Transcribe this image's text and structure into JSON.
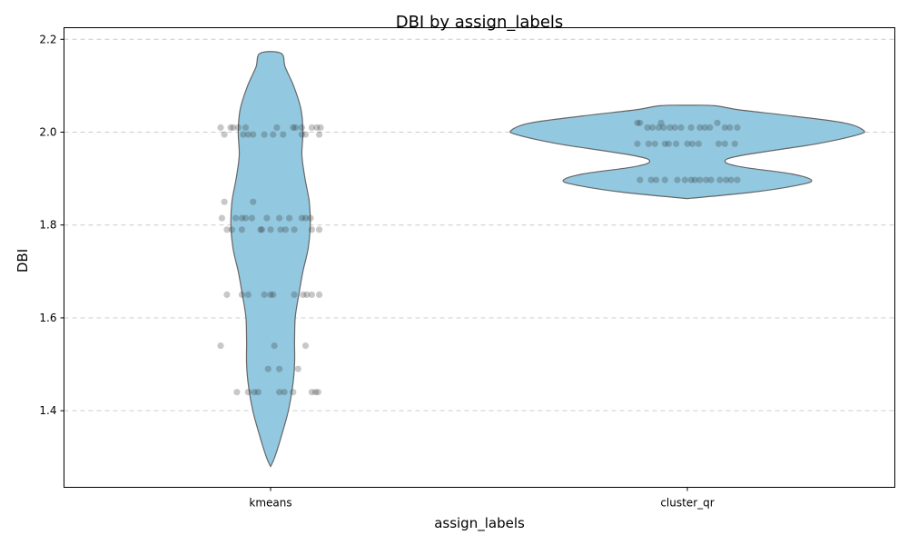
{
  "chart_data": {
    "type": "violin",
    "title": "DBI by assign_labels",
    "xlabel": "assign_labels",
    "ylabel": "DBI",
    "categories": [
      "kmeans",
      "cluster_qr"
    ],
    "ylim": [
      1.235,
      2.225
    ],
    "yticks": [
      1.4,
      1.6,
      1.8,
      2.0,
      2.2
    ],
    "ytick_labels": [
      "1.4",
      "1.6",
      "1.8",
      "2.0",
      "2.2"
    ],
    "grid": "y-dashed",
    "colors": {
      "violin_fill": "#92c9e0",
      "violin_edge": "#666666",
      "points": "#333333"
    },
    "violins": [
      {
        "category": "kmeans",
        "profile": [
          [
            1.28,
            0.0
          ],
          [
            1.3,
            0.02
          ],
          [
            1.35,
            0.055
          ],
          [
            1.4,
            0.085
          ],
          [
            1.45,
            0.105
          ],
          [
            1.5,
            0.115
          ],
          [
            1.55,
            0.115
          ],
          [
            1.6,
            0.118
          ],
          [
            1.65,
            0.135
          ],
          [
            1.7,
            0.155
          ],
          [
            1.75,
            0.18
          ],
          [
            1.8,
            0.19
          ],
          [
            1.85,
            0.185
          ],
          [
            1.9,
            0.165
          ],
          [
            1.95,
            0.15
          ],
          [
            2.0,
            0.155
          ],
          [
            2.05,
            0.145
          ],
          [
            2.1,
            0.11
          ],
          [
            2.14,
            0.07
          ],
          [
            2.17,
            0.05
          ]
        ]
      },
      {
        "category": "cluster_qr",
        "profile": [
          [
            1.857,
            0.0
          ],
          [
            1.87,
            0.3
          ],
          [
            1.885,
            0.52
          ],
          [
            1.896,
            0.595
          ],
          [
            1.91,
            0.5
          ],
          [
            1.925,
            0.26
          ],
          [
            1.937,
            0.18
          ],
          [
            1.95,
            0.26
          ],
          [
            1.975,
            0.62
          ],
          [
            1.995,
            0.82
          ],
          [
            2.005,
            0.84
          ],
          [
            2.02,
            0.75
          ],
          [
            2.035,
            0.5
          ],
          [
            2.048,
            0.25
          ],
          [
            2.057,
            0.13
          ],
          [
            2.058,
            0.0
          ]
        ]
      }
    ],
    "points": [
      {
        "category": "kmeans",
        "values": [
          2.01,
          2.01,
          2.01,
          2.01,
          2.01,
          2.01,
          2.01,
          2.01,
          2.01,
          2.01,
          2.01,
          2.01,
          1.995,
          1.995,
          1.995,
          1.995,
          1.995,
          1.995,
          1.995,
          1.995,
          1.995,
          1.995,
          1.85,
          1.85,
          1.815,
          1.815,
          1.815,
          1.815,
          1.815,
          1.815,
          1.815,
          1.815,
          1.815,
          1.815,
          1.815,
          1.79,
          1.79,
          1.79,
          1.79,
          1.79,
          1.79,
          1.79,
          1.79,
          1.79,
          1.79,
          1.79,
          1.65,
          1.65,
          1.65,
          1.65,
          1.65,
          1.65,
          1.65,
          1.65,
          1.65,
          1.65,
          1.65,
          1.54,
          1.54,
          1.54,
          1.49,
          1.49,
          1.49,
          1.44,
          1.44,
          1.44,
          1.44,
          1.44,
          1.44,
          1.44,
          1.44,
          1.44,
          1.44
        ],
        "jitter": [
          -0.4,
          -0.32,
          -0.3,
          -0.26,
          -0.2,
          0.05,
          0.18,
          0.2,
          0.25,
          0.33,
          0.37,
          0.4,
          -0.37,
          -0.22,
          -0.18,
          -0.14,
          -0.05,
          0.02,
          0.1,
          0.25,
          0.28,
          0.39,
          -0.37,
          -0.14,
          -0.39,
          -0.28,
          -0.23,
          -0.2,
          -0.15,
          -0.03,
          0.07,
          0.15,
          0.25,
          0.28,
          0.32,
          -0.35,
          -0.31,
          -0.23,
          -0.08,
          -0.07,
          0.0,
          0.08,
          0.12,
          0.19,
          0.33,
          0.39,
          -0.35,
          -0.23,
          -0.18,
          -0.05,
          0.0,
          0.02,
          0.19,
          0.26,
          0.29,
          0.33,
          0.39,
          -0.4,
          0.03,
          0.28,
          -0.02,
          0.07,
          0.22,
          -0.27,
          -0.18,
          -0.13,
          -0.1,
          0.07,
          0.11,
          0.18,
          0.33,
          0.36,
          0.38
        ]
      },
      {
        "category": "cluster_qr",
        "values": [
          2.02,
          2.02,
          2.02,
          2.02,
          2.01,
          2.01,
          2.01,
          2.01,
          2.01,
          2.01,
          2.01,
          2.01,
          2.01,
          2.01,
          2.01,
          2.01,
          2.01,
          2.01,
          1.975,
          1.975,
          1.975,
          1.975,
          1.975,
          1.975,
          1.975,
          1.975,
          1.975,
          1.975,
          1.975,
          1.975,
          1.897,
          1.897,
          1.897,
          1.897,
          1.897,
          1.897,
          1.897,
          1.897,
          1.897,
          1.897,
          1.897,
          1.897,
          1.897,
          1.897,
          1.897
        ],
        "jitter": [
          -0.4,
          -0.38,
          -0.21,
          0.24,
          -0.32,
          -0.28,
          -0.23,
          -0.19,
          -0.14,
          -0.1,
          -0.05,
          0.03,
          0.1,
          0.14,
          0.18,
          0.3,
          0.34,
          0.4,
          -0.4,
          -0.31,
          -0.26,
          -0.18,
          -0.15,
          -0.09,
          0.0,
          0.04,
          0.09,
          0.25,
          0.3,
          0.38,
          -0.38,
          -0.29,
          -0.25,
          -0.18,
          -0.08,
          -0.02,
          0.03,
          0.06,
          0.1,
          0.15,
          0.19,
          0.26,
          0.31,
          0.35,
          0.4
        ]
      }
    ]
  }
}
